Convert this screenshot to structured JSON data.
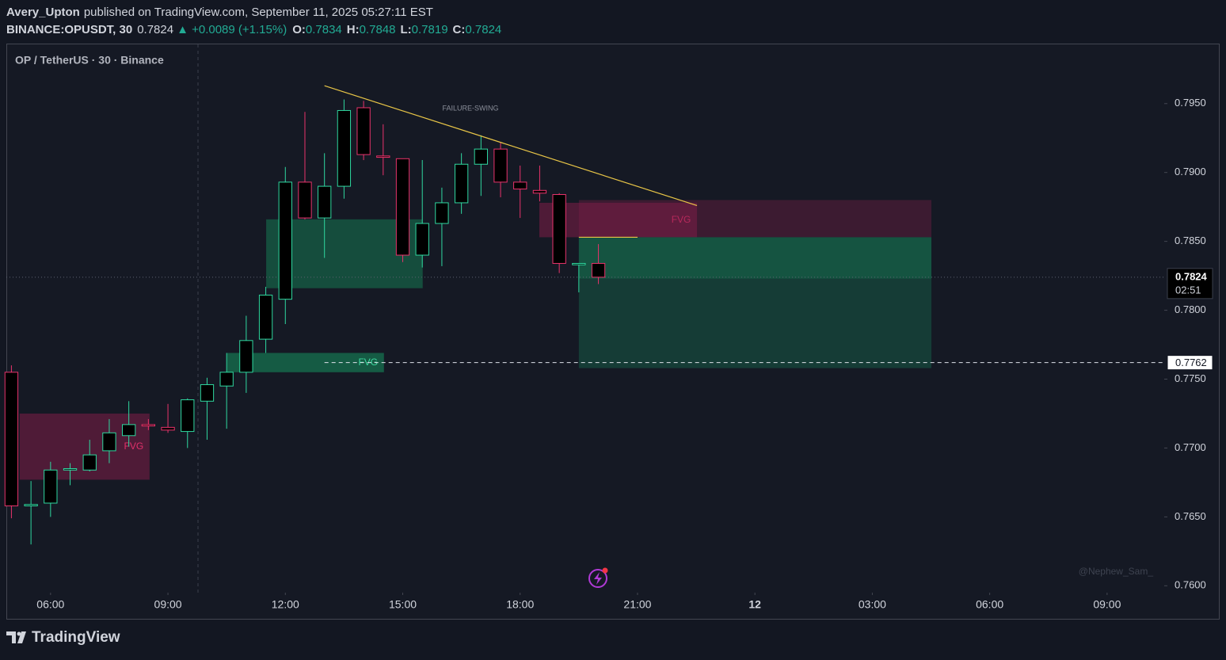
{
  "header": {
    "author": "Avery_Upton",
    "published": "published on TradingView.com, September 11, 2025 05:27:11 EST",
    "symbol": "BINANCE:OPUSDT, 30",
    "last": 0.7824,
    "change": "▲ +0.0089 (+1.15%)",
    "ohlc": [
      {
        "label": "O:",
        "value": 0.7834
      },
      {
        "label": "H:",
        "value": 0.7848
      },
      {
        "label": "L:",
        "value": 0.7819
      },
      {
        "label": "C:",
        "value": 0.7824
      }
    ]
  },
  "chart_data": {
    "type": "candlestick",
    "title": "OP / TetherUS · 30 · Binance",
    "x": [
      5,
      5.5,
      6,
      6.5,
      7,
      7.5,
      8,
      8.5,
      9,
      9.5,
      10,
      10.5,
      11,
      11.5,
      12,
      12.5,
      13,
      13.5,
      14,
      14.5,
      15,
      15.5,
      16,
      16.5,
      17,
      17.5,
      18,
      18.5,
      19,
      19.5,
      20
    ],
    "open": [
      0.7755,
      0.7658,
      0.766,
      0.7684,
      0.7684,
      0.7698,
      0.7709,
      0.7717,
      0.7715,
      0.7712,
      0.7734,
      0.7745,
      0.7755,
      0.7779,
      0.7808,
      0.7893,
      0.7867,
      0.789,
      0.7947,
      0.7912,
      0.791,
      0.784,
      0.7863,
      0.7878,
      0.7906,
      0.7917,
      0.7893,
      0.7887,
      0.7884,
      0.7833,
      0.7834
    ],
    "high": [
      0.776,
      0.7676,
      0.769,
      0.7689,
      0.7706,
      0.7721,
      0.7734,
      0.7721,
      0.7732,
      0.7736,
      0.7751,
      0.7769,
      0.7796,
      0.7817,
      0.7904,
      0.7944,
      0.7914,
      0.7953,
      0.7952,
      0.7935,
      0.791,
      0.7909,
      0.7889,
      0.7914,
      0.7927,
      0.7922,
      0.7905,
      0.7905,
      0.7885,
      0.7834,
      0.7848
    ],
    "low": [
      0.7649,
      0.763,
      0.765,
      0.7673,
      0.7683,
      0.7689,
      0.7701,
      0.7713,
      0.7711,
      0.77,
      0.7706,
      0.7714,
      0.774,
      0.7769,
      0.779,
      0.7866,
      0.7838,
      0.7881,
      0.7909,
      0.7898,
      0.7835,
      0.7831,
      0.7832,
      0.787,
      0.7883,
      0.7882,
      0.7867,
      0.7879,
      0.7827,
      0.7813,
      0.7819
    ],
    "close": [
      0.7658,
      0.7659,
      0.7684,
      0.7685,
      0.7695,
      0.7711,
      0.7717,
      0.7716,
      0.7713,
      0.7735,
      0.7746,
      0.7755,
      0.7778,
      0.7811,
      0.7893,
      0.7867,
      0.789,
      0.7945,
      0.7913,
      0.7911,
      0.784,
      0.7863,
      0.7878,
      0.7906,
      0.7917,
      0.7893,
      0.7888,
      0.7885,
      0.7834,
      0.7834,
      0.7824
    ],
    "up_color": "#2fd8a0",
    "down_color": "#e8336b",
    "body_color": "#000000",
    "xlim": [
      4.87,
      34.46
    ],
    "xticks": [
      {
        "value": 6,
        "label": "06:00"
      },
      {
        "value": 9,
        "label": "09:00"
      },
      {
        "value": 12,
        "label": "12:00"
      },
      {
        "value": 15,
        "label": "15:00"
      },
      {
        "value": 18,
        "label": "18:00"
      },
      {
        "value": 21,
        "label": "21:00"
      },
      {
        "value": 24,
        "label": "12"
      },
      {
        "value": 27,
        "label": "03:00"
      },
      {
        "value": 30,
        "label": "06:00"
      },
      {
        "value": 33,
        "label": "09:00"
      }
    ],
    "ylim": [
      0.7595,
      0.7993
    ],
    "yticks": [
      {
        "value": 0.795,
        "label": "0.7950"
      },
      {
        "value": 0.79,
        "label": "0.7900"
      },
      {
        "value": 0.785,
        "label": "0.7850"
      },
      {
        "value": 0.78,
        "label": "0.7800"
      },
      {
        "value": 0.775,
        "label": "0.7750"
      },
      {
        "value": 0.77,
        "label": "0.7700"
      },
      {
        "value": 0.765,
        "label": "0.7650"
      },
      {
        "value": 0.76,
        "label": "0.7600"
      }
    ],
    "grid": false,
    "zones": [
      {
        "x": [
          5.21,
          8.53
        ],
        "y": [
          0.7725,
          0.7677
        ],
        "color": "rgba(150,30,80,0.45)",
        "label": "FVG",
        "label_color": "#e0306a"
      },
      {
        "x": [
          11.51,
          15.51
        ],
        "y": [
          0.7866,
          0.7816
        ],
        "color": "rgba(22,120,82,0.55)"
      },
      {
        "x": [
          10.51,
          14.52
        ],
        "y": [
          0.7769,
          0.7755
        ],
        "color": "rgba(22,120,82,0.7)",
        "label": "FVG",
        "label_color": "#3dd9a0"
      },
      {
        "x": [
          18.49,
          22.52
        ],
        "y": [
          0.7878,
          0.7853
        ],
        "color": "rgba(150,30,80,0.45)",
        "label": "FVG",
        "label_color": "#e0306a"
      },
      {
        "x": [
          19.5,
          28.51
        ],
        "y": [
          0.788,
          0.7853
        ],
        "color": "rgba(120,30,70,0.4)"
      },
      {
        "x": [
          19.5,
          28.51
        ],
        "y": [
          0.7853,
          0.7758
        ],
        "color": "rgba(22,95,72,0.5)"
      },
      {
        "x": [
          19.5,
          28.51
        ],
        "y": [
          0.7853,
          0.7823
        ],
        "color": "rgba(22,120,82,0.4)"
      }
    ],
    "trendlines": [
      {
        "x": [
          13.0,
          22.52
        ],
        "y": [
          0.7963,
          0.7876
        ],
        "color": "#e8c547"
      },
      {
        "x": [
          19.5,
          21.0
        ],
        "y": [
          0.7853,
          0.7853
        ],
        "color": "#e8c547"
      }
    ],
    "level": {
      "value": 0.7762,
      "from_x": 13.0
    },
    "countdown": "02:51",
    "annotations": [
      "FAILURE-SWING"
    ],
    "watermark": "@Nephew_Sam_"
  },
  "footer": {
    "brand": "TradingView"
  }
}
